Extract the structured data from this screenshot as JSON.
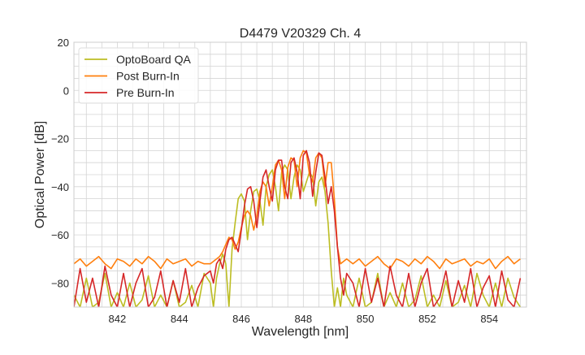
{
  "chart_data": {
    "type": "line",
    "title": "D4479 V20329 Ch. 4",
    "xlabel": "Wavelength [nm]",
    "ylabel": "Optical Power [dB]",
    "xlim": [
      840.6,
      855.2
    ],
    "ylim": [
      -90,
      20
    ],
    "xticks": [
      842,
      844,
      846,
      848,
      850,
      852,
      854
    ],
    "yticks": [
      -80,
      -60,
      -40,
      -20,
      0,
      20
    ],
    "xtick_labels": [
      "842",
      "844",
      "846",
      "848",
      "850",
      "852",
      "854"
    ],
    "ytick_labels": [
      "−80",
      "−60",
      "−40",
      "−20",
      "0",
      "20"
    ],
    "grid": true,
    "minor_grid": true,
    "legend_placement": "upper-left",
    "x": [
      840.6,
      840.8,
      841.0,
      841.2,
      841.4,
      841.6,
      841.8,
      842.0,
      842.2,
      842.4,
      842.6,
      842.8,
      843.0,
      843.2,
      843.4,
      843.6,
      843.8,
      844.0,
      844.2,
      844.4,
      844.6,
      844.8,
      845.0,
      845.1,
      845.2,
      845.3,
      845.4,
      845.5,
      845.6,
      845.7,
      845.8,
      845.9,
      846.0,
      846.1,
      846.2,
      846.3,
      846.4,
      846.5,
      846.6,
      846.7,
      846.8,
      846.9,
      847.0,
      847.1,
      847.2,
      847.3,
      847.4,
      847.5,
      847.6,
      847.7,
      847.8,
      847.9,
      848.0,
      848.1,
      848.2,
      848.3,
      848.4,
      848.5,
      848.6,
      848.7,
      848.8,
      848.9,
      849.0,
      849.1,
      849.2,
      849.3,
      849.4,
      849.6,
      849.8,
      850.0,
      850.2,
      850.4,
      850.6,
      850.8,
      851.0,
      851.2,
      851.4,
      851.6,
      851.8,
      852.0,
      852.2,
      852.4,
      852.6,
      852.8,
      853.0,
      853.2,
      853.4,
      853.6,
      853.8,
      854.0,
      854.2,
      854.4,
      854.6,
      854.8,
      855.0
    ],
    "series": [
      {
        "name": "OptoBoard QA",
        "color": "#bcbd22",
        "values": [
          -85,
          -90,
          -78,
          -90,
          -88,
          -76,
          -90,
          -84,
          -90,
          -80,
          -90,
          -87,
          -77,
          -90,
          -85,
          -90,
          -79,
          -90,
          -88,
          -81,
          -90,
          -76,
          -80,
          -90,
          -78,
          -72,
          -68,
          -72,
          -90,
          -66,
          -55,
          -45,
          -43,
          -46,
          -62,
          -50,
          -42,
          -41,
          -46,
          -56,
          -40,
          -35,
          -33,
          -40,
          -50,
          -34,
          -31,
          -33,
          -45,
          -36,
          -31,
          -33,
          -42,
          -38,
          -34,
          -36,
          -48,
          -38,
          -36,
          -42,
          -55,
          -75,
          -90,
          -82,
          -90,
          -78,
          -85,
          -90,
          -78,
          -90,
          -88,
          -76,
          -90,
          -84,
          -90,
          -80,
          -90,
          -87,
          -77,
          -90,
          -85,
          -90,
          -79,
          -90,
          -88,
          -81,
          -90,
          -76,
          -85,
          -90,
          -80,
          -90,
          -78,
          -86,
          -90
        ]
      },
      {
        "name": "Post Burn-In",
        "color": "#ff7f0e",
        "values": [
          -72,
          -70,
          -73,
          -71,
          -69,
          -72,
          -74,
          -70,
          -71,
          -73,
          -70,
          -72,
          -69,
          -71,
          -74,
          -70,
          -72,
          -71,
          -70,
          -73,
          -71,
          -72,
          -72,
          -71,
          -70,
          -69,
          -67,
          -64,
          -61,
          -62,
          -66,
          -63,
          -57,
          -52,
          -50,
          -52,
          -58,
          -52,
          -42,
          -38,
          -40,
          -48,
          -40,
          -31,
          -29,
          -33,
          -45,
          -32,
          -28,
          -29,
          -40,
          -28,
          -25,
          -26,
          -35,
          -38,
          -28,
          -26,
          -28,
          -40,
          -30,
          -30,
          -45,
          -65,
          -72,
          -71,
          -70,
          -72,
          -70,
          -73,
          -71,
          -69,
          -72,
          -74,
          -70,
          -71,
          -73,
          -70,
          -72,
          -69,
          -71,
          -74,
          -70,
          -72,
          -71,
          -70,
          -73,
          -71,
          -72,
          -70,
          -74,
          -71,
          -69,
          -72,
          -70
        ]
      },
      {
        "name": "Pre Burn-In",
        "color": "#d62728",
        "values": [
          -90,
          -74,
          -88,
          -78,
          -90,
          -73,
          -85,
          -90,
          -76,
          -90,
          -80,
          -74,
          -90,
          -86,
          -75,
          -90,
          -79,
          -88,
          -74,
          -90,
          -82,
          -77,
          -75,
          -80,
          -72,
          -70,
          -74,
          -66,
          -62,
          -61,
          -64,
          -67,
          -58,
          -48,
          -41,
          -40,
          -46,
          -57,
          -46,
          -36,
          -33,
          -40,
          -46,
          -33,
          -29,
          -29,
          -40,
          -45,
          -30,
          -28,
          -34,
          -45,
          -27,
          -25,
          -30,
          -44,
          -34,
          -26,
          -27,
          -36,
          -47,
          -40,
          -50,
          -65,
          -78,
          -85,
          -76,
          -80,
          -90,
          -74,
          -88,
          -78,
          -90,
          -73,
          -85,
          -90,
          -76,
          -90,
          -80,
          -74,
          -90,
          -86,
          -75,
          -90,
          -79,
          -88,
          -74,
          -90,
          -82,
          -77,
          -90,
          -75,
          -87,
          -90,
          -78
        ]
      }
    ]
  }
}
